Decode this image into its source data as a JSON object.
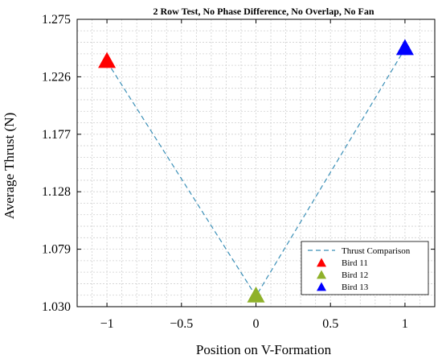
{
  "chart_data": {
    "type": "scatter",
    "title": "2 Row Test, No Phase Difference, No Overlap, No Fan",
    "xlabel": "Position on V-Formation",
    "ylabel": "Average Thrust (N)",
    "xlim": [
      -1.2,
      1.2
    ],
    "ylim": [
      1.03,
      1.275
    ],
    "xticks": [
      -1,
      -0.5,
      0,
      0.5,
      1
    ],
    "xtick_labels": [
      "−1",
      "−0.5",
      "0",
      "0.5",
      "1"
    ],
    "yticks": [
      1.03,
      1.079,
      1.128,
      1.177,
      1.226,
      1.275
    ],
    "ytick_labels": [
      "1.030",
      "1.079",
      "1.128",
      "1.177",
      "1.226",
      "1.275"
    ],
    "grid": true,
    "legend_position": "bottom-right",
    "line": {
      "name": "Thrust Comparison",
      "style": "dashed",
      "color": "#3a8fb7",
      "x": [
        -1,
        0,
        1
      ],
      "y": [
        1.239,
        1.039,
        1.25
      ]
    },
    "series": [
      {
        "name": "Bird 11",
        "color": "#ff0000",
        "marker": "triangle",
        "x": -1,
        "y": 1.239
      },
      {
        "name": "Bird 12",
        "color": "#8fb12a",
        "marker": "triangle",
        "x": 0,
        "y": 1.039
      },
      {
        "name": "Bird 13",
        "color": "#0000ff",
        "marker": "triangle",
        "x": 1,
        "y": 1.25
      }
    ]
  }
}
